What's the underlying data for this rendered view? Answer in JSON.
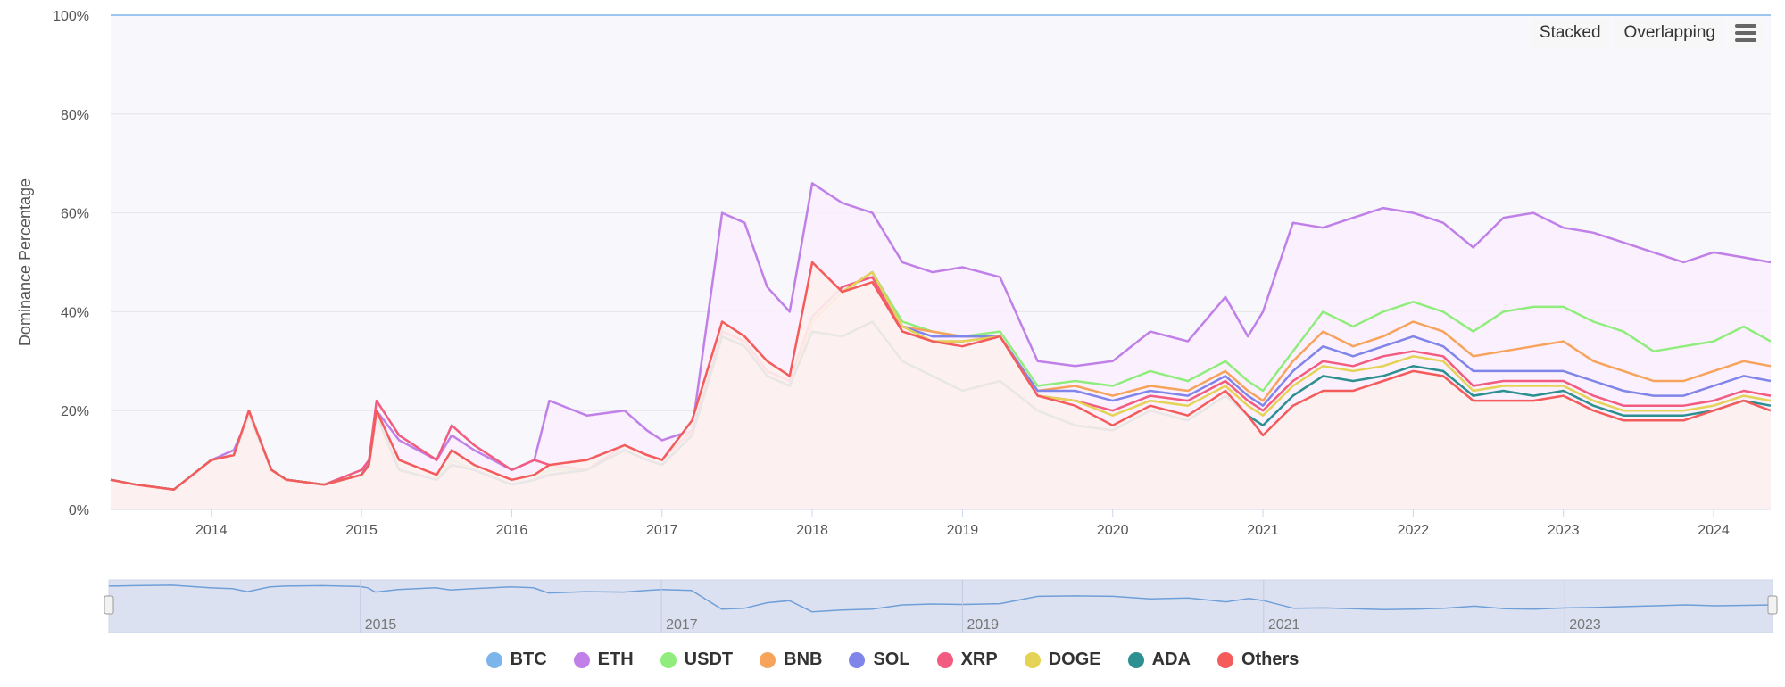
{
  "controls": {
    "stacked_label": "Stacked",
    "overlapping_label": "Overlapping",
    "menu_icon": "hamburger-menu-icon"
  },
  "chart_data": {
    "type": "line",
    "title": "",
    "xlabel": "",
    "ylabel": "Dominance Percentage",
    "y_ticks": [
      "0%",
      "20%",
      "40%",
      "60%",
      "80%",
      "100%"
    ],
    "ylim": [
      0,
      100
    ],
    "x_ticks": [
      "2014",
      "2015",
      "2016",
      "2017",
      "2018",
      "2019",
      "2020",
      "2021",
      "2022",
      "2023",
      "2024"
    ],
    "xlim": [
      2013.33,
      2024.38
    ],
    "grid": true,
    "legend_position": "bottom",
    "navigator_ticks": [
      "2015",
      "2017",
      "2019",
      "2021",
      "2023"
    ],
    "top_line_value": 100,
    "x": [
      2013.33,
      2013.5,
      2013.75,
      2014.0,
      2014.15,
      2014.25,
      2014.4,
      2014.5,
      2014.75,
      2015.0,
      2015.05,
      2015.1,
      2015.25,
      2015.5,
      2015.6,
      2015.75,
      2016.0,
      2016.15,
      2016.25,
      2016.5,
      2016.75,
      2016.9,
      2017.0,
      2017.2,
      2017.4,
      2017.55,
      2017.7,
      2017.85,
      2018.0,
      2018.2,
      2018.4,
      2018.6,
      2018.8,
      2019.0,
      2019.25,
      2019.5,
      2019.75,
      2020.0,
      2020.25,
      2020.5,
      2020.75,
      2020.9,
      2021.0,
      2021.2,
      2021.4,
      2021.6,
      2021.8,
      2022.0,
      2022.2,
      2022.4,
      2022.6,
      2022.8,
      2023.0,
      2023.2,
      2023.4,
      2023.6,
      2023.8,
      2024.0,
      2024.2,
      2024.38
    ],
    "series": [
      {
        "name": "BTC",
        "color": "#7cb5ec",
        "values": [
          100,
          100,
          100,
          100,
          100,
          100,
          100,
          100,
          100,
          100,
          100,
          100,
          100,
          100,
          100,
          100,
          100,
          100,
          100,
          100,
          100,
          100,
          100,
          100,
          100,
          100,
          100,
          100,
          100,
          100,
          100,
          100,
          100,
          100,
          100,
          100,
          100,
          100,
          100,
          100,
          100,
          100,
          100,
          100,
          100,
          100,
          100,
          100,
          100,
          100,
          100,
          100,
          100,
          100,
          100,
          100,
          100,
          100,
          100,
          100
        ]
      },
      {
        "name": "ETH",
        "color": "#c080e8",
        "values": [
          6,
          5,
          4,
          10,
          12,
          19,
          8,
          6,
          5,
          7,
          10,
          20,
          14,
          10,
          15,
          12,
          8,
          10,
          22,
          19,
          20,
          16,
          14,
          16,
          60,
          58,
          45,
          40,
          66,
          62,
          60,
          50,
          48,
          49,
          47,
          30,
          29,
          30,
          36,
          34,
          43,
          35,
          40,
          58,
          57,
          59,
          61,
          60,
          58,
          53,
          59,
          60,
          57,
          56,
          54,
          52,
          50,
          52,
          51,
          50
        ]
      },
      {
        "name": "USDT",
        "color": "#90ed7d",
        "values": [
          6,
          5,
          4,
          10,
          11,
          19,
          8,
          6,
          5,
          7,
          9,
          19,
          8,
          6,
          10,
          8,
          5,
          6,
          8,
          8,
          12,
          10,
          9,
          15,
          35,
          33,
          27,
          25,
          38,
          44,
          48,
          38,
          36,
          35,
          36,
          25,
          26,
          25,
          28,
          26,
          30,
          26,
          24,
          32,
          40,
          37,
          40,
          42,
          40,
          36,
          40,
          41,
          41,
          38,
          36,
          32,
          33,
          34,
          37,
          34
        ]
      },
      {
        "name": "BNB",
        "color": "#f7a35c",
        "values": [
          6,
          5,
          4,
          10,
          11,
          19,
          8,
          6,
          5,
          7,
          9,
          19,
          8,
          6,
          9,
          8,
          5,
          6,
          7,
          8,
          12,
          10,
          9,
          15,
          35,
          33,
          27,
          25,
          38,
          44,
          48,
          37,
          36,
          35,
          35,
          24,
          25,
          23,
          25,
          24,
          28,
          24,
          22,
          30,
          36,
          33,
          35,
          38,
          36,
          31,
          32,
          33,
          34,
          30,
          28,
          26,
          26,
          28,
          30,
          29
        ]
      },
      {
        "name": "SOL",
        "color": "#8085e9",
        "values": [
          6,
          5,
          4,
          10,
          11,
          19,
          8,
          6,
          5,
          7,
          9,
          19,
          8,
          6,
          9,
          8,
          5,
          6,
          7,
          8,
          12,
          10,
          9,
          15,
          35,
          33,
          27,
          25,
          38,
          44,
          48,
          37,
          35,
          35,
          35,
          24,
          24,
          22,
          24,
          23,
          27,
          23,
          21,
          28,
          33,
          31,
          33,
          35,
          33,
          28,
          28,
          28,
          28,
          26,
          24,
          23,
          23,
          25,
          27,
          26
        ]
      },
      {
        "name": "XRP",
        "color": "#f15c80",
        "values": [
          6,
          5,
          4,
          10,
          11,
          20,
          8,
          6,
          5,
          8,
          10,
          22,
          15,
          10,
          17,
          13,
          8,
          10,
          9,
          8,
          13,
          11,
          10,
          16,
          36,
          34,
          28,
          26,
          39,
          45,
          47,
          36,
          34,
          34,
          35,
          23,
          22,
          20,
          23,
          22,
          26,
          22,
          20,
          26,
          30,
          29,
          31,
          32,
          31,
          25,
          26,
          26,
          26,
          23,
          21,
          21,
          21,
          22,
          24,
          23
        ]
      },
      {
        "name": "DOGE",
        "color": "#e4d354",
        "values": [
          6,
          5,
          4,
          10,
          11,
          19,
          8,
          6,
          5,
          7,
          9,
          19,
          8,
          6,
          9,
          8,
          5,
          6,
          7,
          8,
          12,
          10,
          9,
          15,
          35,
          33,
          27,
          25,
          38,
          44,
          48,
          37,
          34,
          34,
          35,
          23,
          22,
          19,
          22,
          21,
          25,
          21,
          19,
          25,
          29,
          28,
          29,
          31,
          30,
          24,
          25,
          25,
          25,
          22,
          20,
          20,
          20,
          21,
          23,
          22
        ]
      },
      {
        "name": "ADA",
        "color": "#2b908f",
        "values": [
          6,
          5,
          4,
          10,
          11,
          19,
          8,
          6,
          5,
          7,
          9,
          19,
          8,
          6,
          9,
          8,
          5,
          6,
          7,
          8,
          12,
          10,
          9,
          15,
          35,
          33,
          27,
          25,
          36,
          35,
          38,
          30,
          27,
          24,
          26,
          20,
          17,
          16,
          20,
          18,
          23,
          19,
          17,
          23,
          27,
          26,
          27,
          29,
          28,
          23,
          24,
          23,
          24,
          21,
          19,
          19,
          19,
          20,
          22,
          21
        ]
      },
      {
        "name": "Others",
        "color": "#f45b5b",
        "values": [
          6,
          5,
          4,
          10,
          11,
          20,
          8,
          6,
          5,
          7,
          9,
          20,
          10,
          7,
          12,
          9,
          6,
          7,
          9,
          10,
          13,
          11,
          10,
          18,
          38,
          35,
          30,
          27,
          50,
          44,
          46,
          36,
          34,
          33,
          35,
          23,
          21,
          17,
          21,
          19,
          24,
          19,
          15,
          21,
          24,
          24,
          26,
          28,
          27,
          22,
          22,
          22,
          23,
          20,
          18,
          18,
          18,
          20,
          22,
          20
        ]
      }
    ]
  }
}
